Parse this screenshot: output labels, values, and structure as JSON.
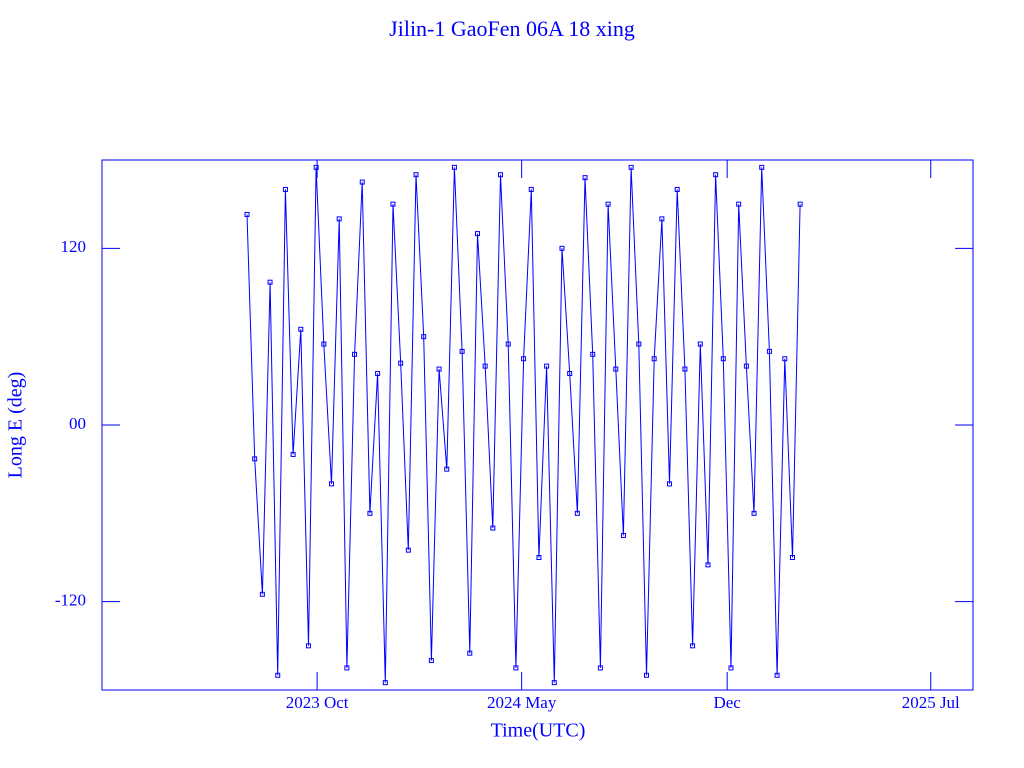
{
  "chart_data": {
    "type": "line",
    "title": "Jilin-1 GaoFen 06A 18 xing",
    "x_label": "Time(UTC)",
    "y_label": "Long E (deg)",
    "xlim": [
      "2023-02-19",
      "2025-08-14"
    ],
    "xticks": [
      {
        "value": "2023-10-01",
        "label": "2023 Oct"
      },
      {
        "value": "2024-05-01",
        "label": "2024 May"
      },
      {
        "value": "2024-12-01",
        "label": "Dec"
      },
      {
        "value": "2025-07-01",
        "label": "2025 Jul"
      }
    ],
    "ylim": [
      -180,
      180
    ],
    "yticks": [
      -120,
      {
        "value": 0,
        "label": "00"
      },
      120
    ],
    "grid": false,
    "series": [
      {
        "name": "Jilin-1 GaoFen 06A 18",
        "color": "#0000ff",
        "x": [
          "2023-07-20",
          "2023-07-28",
          "2023-08-05",
          "2023-08-13",
          "2023-08-21",
          "2023-08-29",
          "2023-09-06",
          "2023-09-14",
          "2023-09-22",
          "2023-09-30",
          "2023-10-08",
          "2023-10-16",
          "2023-10-24",
          "2023-11-01",
          "2023-11-09",
          "2023-11-17",
          "2023-11-25",
          "2023-12-03",
          "2023-12-11",
          "2023-12-19",
          "2023-12-27",
          "2024-01-04",
          "2024-01-12",
          "2024-01-20",
          "2024-01-28",
          "2024-02-05",
          "2024-02-13",
          "2024-02-21",
          "2024-02-29",
          "2024-03-08",
          "2024-03-16",
          "2024-03-24",
          "2024-04-01",
          "2024-04-09",
          "2024-04-17",
          "2024-04-25",
          "2024-05-03",
          "2024-05-11",
          "2024-05-19",
          "2024-05-27",
          "2024-06-04",
          "2024-06-12",
          "2024-06-20",
          "2024-06-28",
          "2024-07-06",
          "2024-07-14",
          "2024-07-22",
          "2024-07-30",
          "2024-08-07",
          "2024-08-15",
          "2024-08-23",
          "2024-08-31",
          "2024-09-08",
          "2024-09-16",
          "2024-09-24",
          "2024-10-02",
          "2024-10-10",
          "2024-10-18",
          "2024-10-26",
          "2024-11-03",
          "2024-11-11",
          "2024-11-19",
          "2024-11-27",
          "2024-12-05",
          "2024-12-13",
          "2024-12-21",
          "2024-12-29",
          "2025-01-06",
          "2025-01-14",
          "2025-01-22",
          "2025-01-30",
          "2025-02-07",
          "2025-02-15"
        ],
        "values": [
          143,
          -23,
          -115,
          97,
          -170,
          160,
          -20,
          65,
          -150,
          175,
          55,
          -40,
          140,
          -165,
          48,
          165,
          -60,
          35,
          -175,
          150,
          42,
          -85,
          170,
          60,
          -160,
          38,
          -30,
          175,
          50,
          -155,
          130,
          40,
          -70,
          170,
          55,
          -165,
          45,
          160,
          -90,
          40,
          -175,
          120,
          35,
          -60,
          168,
          48,
          -165,
          150,
          38,
          -75,
          175,
          55,
          -170,
          45,
          140,
          -40,
          160,
          38,
          -150,
          55,
          -95,
          170,
          45,
          -165,
          150,
          40,
          -60,
          175,
          50,
          -170,
          45,
          -90,
          150
        ]
      }
    ]
  }
}
